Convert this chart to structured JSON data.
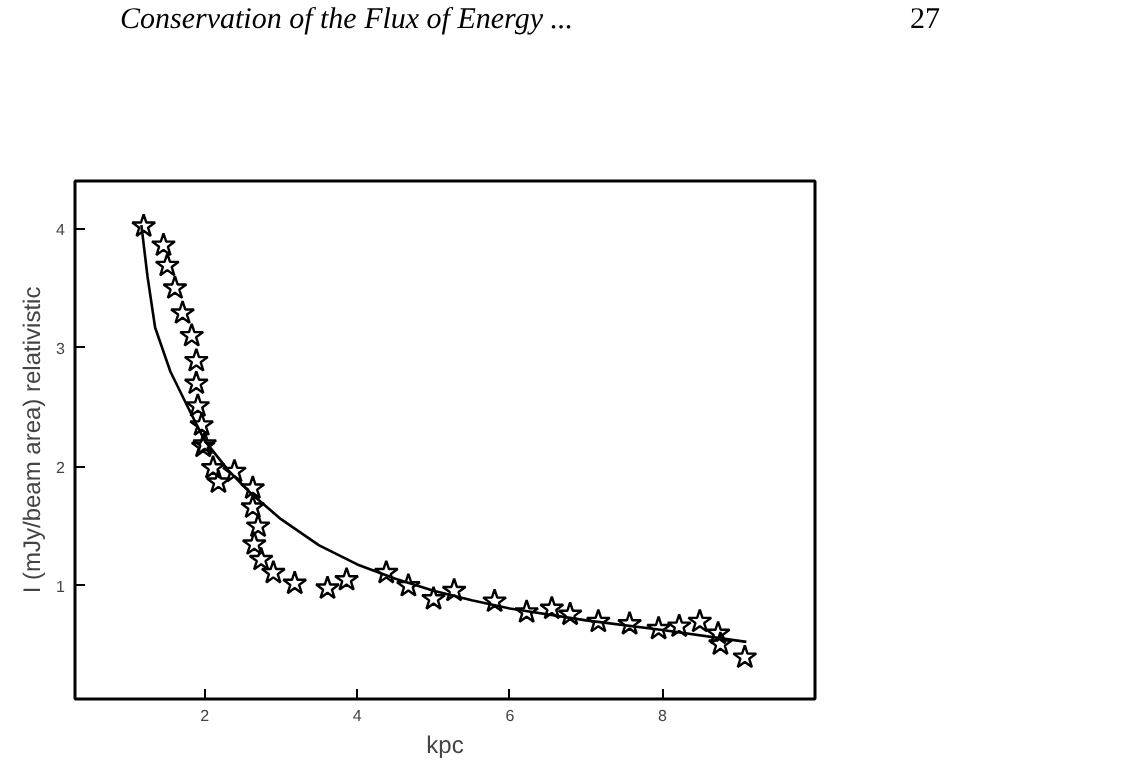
{
  "chart_data": {
    "type": "scatter",
    "title": "Conservation of the Flux of Energy ...",
    "annotations": [
      "27"
    ],
    "xlabel": "kpc",
    "ylabel": "I (mJy/beam area) relativistic",
    "xlim": [
      0.3,
      10
    ],
    "ylim": [
      0.05,
      4.4
    ],
    "xticks": [
      2,
      4,
      6,
      8
    ],
    "yticks": [
      1,
      2,
      3,
      4
    ],
    "grid": false,
    "series": [
      {
        "marker": "star",
        "color": "#000000",
        "x": [
          1.2,
          1.46,
          1.51,
          1.61,
          1.71,
          1.83,
          1.89,
          1.89,
          1.91,
          1.96,
          2.0,
          2.11,
          2.39,
          1.98,
          2.18,
          2.63,
          2.63,
          2.7,
          2.65,
          2.74,
          2.9,
          3.18,
          3.61,
          3.86,
          4.38,
          4.67,
          5.0,
          5.27,
          5.8,
          6.22,
          6.55,
          6.79,
          7.16,
          7.57,
          7.95,
          8.22,
          8.49,
          8.73,
          8.76,
          9.08
        ],
        "values": [
          4.02,
          3.86,
          3.69,
          3.5,
          3.29,
          3.1,
          2.89,
          2.7,
          2.51,
          2.35,
          2.19,
          1.99,
          1.96,
          2.17,
          1.87,
          1.82,
          1.66,
          1.5,
          1.35,
          1.22,
          1.11,
          1.02,
          0.98,
          1.05,
          1.11,
          1.0,
          0.89,
          0.96,
          0.87,
          0.78,
          0.81,
          0.76,
          0.7,
          0.68,
          0.64,
          0.66,
          0.7,
          0.6,
          0.51,
          0.4
        ]
      },
      {
        "type": "line",
        "color": "#000000",
        "x": [
          1.17,
          1.25,
          1.35,
          1.55,
          1.78,
          2.0,
          2.31,
          2.6,
          3.0,
          3.5,
          4.0,
          4.5,
          5.0,
          5.5,
          6.0,
          7.0,
          8.0,
          9.1
        ],
        "values": [
          4.03,
          3.6,
          3.17,
          2.8,
          2.5,
          2.22,
          1.97,
          1.78,
          1.56,
          1.34,
          1.18,
          1.06,
          0.96,
          0.88,
          0.81,
          0.71,
          0.63,
          0.53
        ]
      }
    ]
  }
}
